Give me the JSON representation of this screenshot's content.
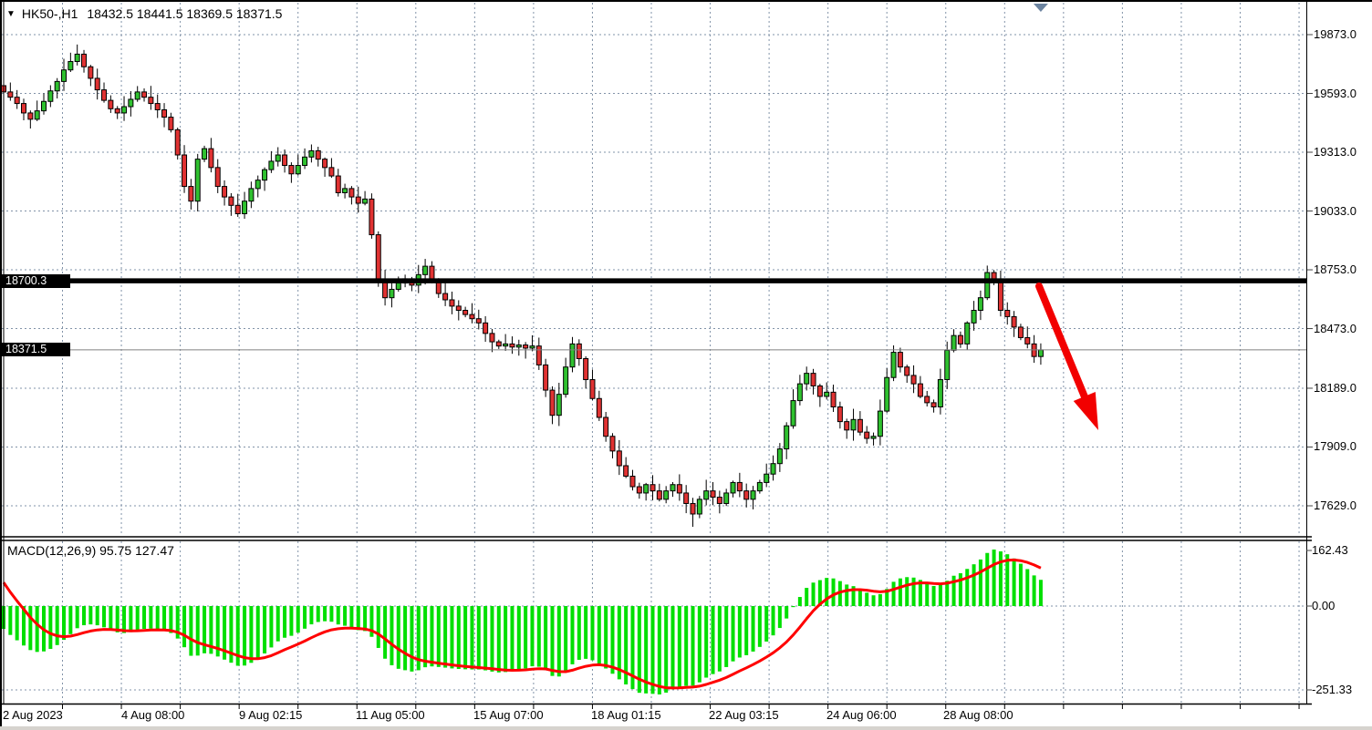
{
  "header": {
    "dropdown_icon": "▼",
    "symbol": "HK50-,H1",
    "ohlc": "18432.5 18441.5 18369.5 18371.5"
  },
  "colors": {
    "background": "#ffffff",
    "grid": "#8293A8",
    "candle_up": "#2FC12F",
    "candle_down": "#E03232",
    "wick": "#000000",
    "macd_histogram": "#00DF00",
    "macd_signal": "#FF0000",
    "arrow": "#F20000",
    "resistance_line": "#000000",
    "current_price_line": "#808080",
    "scroll_marker": "#6C84A0",
    "plate_bg": "#000000",
    "plate_text": "#ffffff"
  },
  "chart_data": {
    "type": "candlestick",
    "symbol": "HK50-",
    "timeframe": "H1",
    "title": "HK50-,H1  18432.5 18441.5 18369.5 18371.5",
    "visible_bar_ohlc": {
      "open": 18432.5,
      "high": 18441.5,
      "low": 18369.5,
      "close": 18371.5
    },
    "price_axis_ticks": [
      "19873.0",
      "19593.0",
      "19313.0",
      "19033.0",
      "18753.0",
      "18473.0",
      "18189.0",
      "17909.0",
      "17629.0"
    ],
    "time_axis_ticks": [
      "2 Aug 2023",
      "4 Aug 08:00",
      "9 Aug 02:15",
      "11 Aug 05:00",
      "15 Aug 07:00",
      "18 Aug 01:15",
      "22 Aug 03:15",
      "24 Aug 06:00",
      "28 Aug 08:00"
    ],
    "resistance_level": 18700.3,
    "resistance_label": "18700.3",
    "current_price": 18371.5,
    "current_price_label": "18371.5",
    "first_open": 19630,
    "closes": [
      19600,
      19575,
      19545,
      19500,
      19470,
      19510,
      19555,
      19605,
      19650,
      19705,
      19745,
      19780,
      19720,
      19665,
      19610,
      19560,
      19520,
      19500,
      19530,
      19565,
      19600,
      19575,
      19545,
      19515,
      19480,
      19420,
      19300,
      19150,
      19080,
      19280,
      19330,
      19240,
      19150,
      19100,
      19060,
      19020,
      19080,
      19140,
      19180,
      19230,
      19270,
      19300,
      19250,
      19210,
      19250,
      19290,
      19320,
      19280,
      19240,
      19200,
      19120,
      19140,
      19100,
      19070,
      19090,
      18920,
      18700,
      18620,
      18660,
      18690,
      18710,
      18680,
      18730,
      18770,
      18700,
      18640,
      18610,
      18580,
      18560,
      18540,
      18520,
      18500,
      18450,
      18410,
      18390,
      18400,
      18385,
      18395,
      18380,
      18390,
      18300,
      18180,
      18060,
      18160,
      18290,
      18400,
      18330,
      18230,
      18140,
      18050,
      17960,
      17890,
      17820,
      17770,
      17720,
      17690,
      17730,
      17700,
      17660,
      17700,
      17730,
      17690,
      17640,
      17590,
      17660,
      17700,
      17670,
      17640,
      17690,
      17740,
      17700,
      17660,
      17700,
      17740,
      17780,
      17830,
      17900,
      18010,
      18130,
      18210,
      18260,
      18200,
      18150,
      18170,
      18100,
      18030,
      17990,
      18040,
      17980,
      17950,
      17960,
      18080,
      18240,
      18360,
      18290,
      18250,
      18210,
      18150,
      18120,
      18100,
      18230,
      18370,
      18440,
      18400,
      18500,
      18560,
      18620,
      18740,
      18700,
      18560,
      18530,
      18480,
      18430,
      18400,
      18340,
      18371.5
    ],
    "indicator": {
      "name": "MACD",
      "params": "12,26,9",
      "label": "MACD(12,26,9) 95.75 127.47",
      "main_value": 95.75,
      "signal_value": 127.47,
      "axis_ticks": [
        "162.43",
        "0.00",
        "-251.33"
      ]
    },
    "arrow_annotation": {
      "from": [
        1139,
        314
      ],
      "to": [
        1204,
        472
      ]
    }
  }
}
